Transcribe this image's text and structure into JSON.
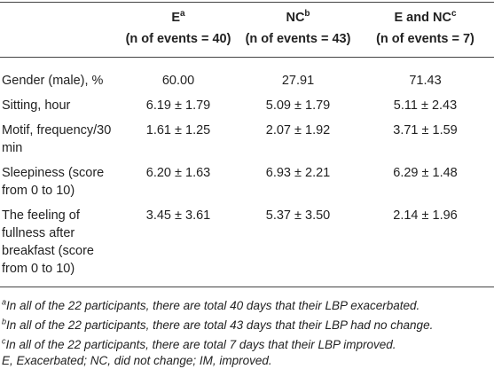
{
  "table": {
    "headers": [
      {
        "label": "E",
        "sup": "a",
        "count": "(n of events = 40)"
      },
      {
        "label": "NC",
        "sup": "b",
        "count": "(n of events = 43)"
      },
      {
        "label": "E and NC",
        "sup": "c",
        "count": "(n of events = 7)"
      }
    ],
    "rows": [
      [
        "Gender (male), %",
        "60.00",
        "27.91",
        "71.43"
      ],
      [
        "Sitting, hour",
        "6.19 ± 1.79",
        "5.09 ± 1.79",
        "5.11 ± 2.43"
      ],
      [
        "Motif, frequency/30 min",
        "1.61 ± 1.25",
        "2.07 ± 1.92",
        "3.71 ± 1.59"
      ],
      [
        "Sleepiness (score from 0 to 10)",
        "6.20 ± 1.63",
        "6.93 ± 2.21",
        "6.29 ± 1.48"
      ],
      [
        "The feeling of fullness after breakfast (score from 0 to 10)",
        "3.45 ± 3.61",
        "5.37 ± 3.50",
        "2.14 ± 1.96"
      ]
    ]
  },
  "footnotes": [
    {
      "sup": "a",
      "text": "In all of the 22 participants, there are total 40 days that their LBP exacerbated."
    },
    {
      "sup": "b",
      "text": "In all of the 22 participants, there are total 43 days that their LBP had no change."
    },
    {
      "sup": "c",
      "text": "In all of the 22 participants, there are total 7 days that their LBP improved."
    },
    {
      "text": "E, Exacerbated; NC, did not change; IM, improved."
    }
  ]
}
